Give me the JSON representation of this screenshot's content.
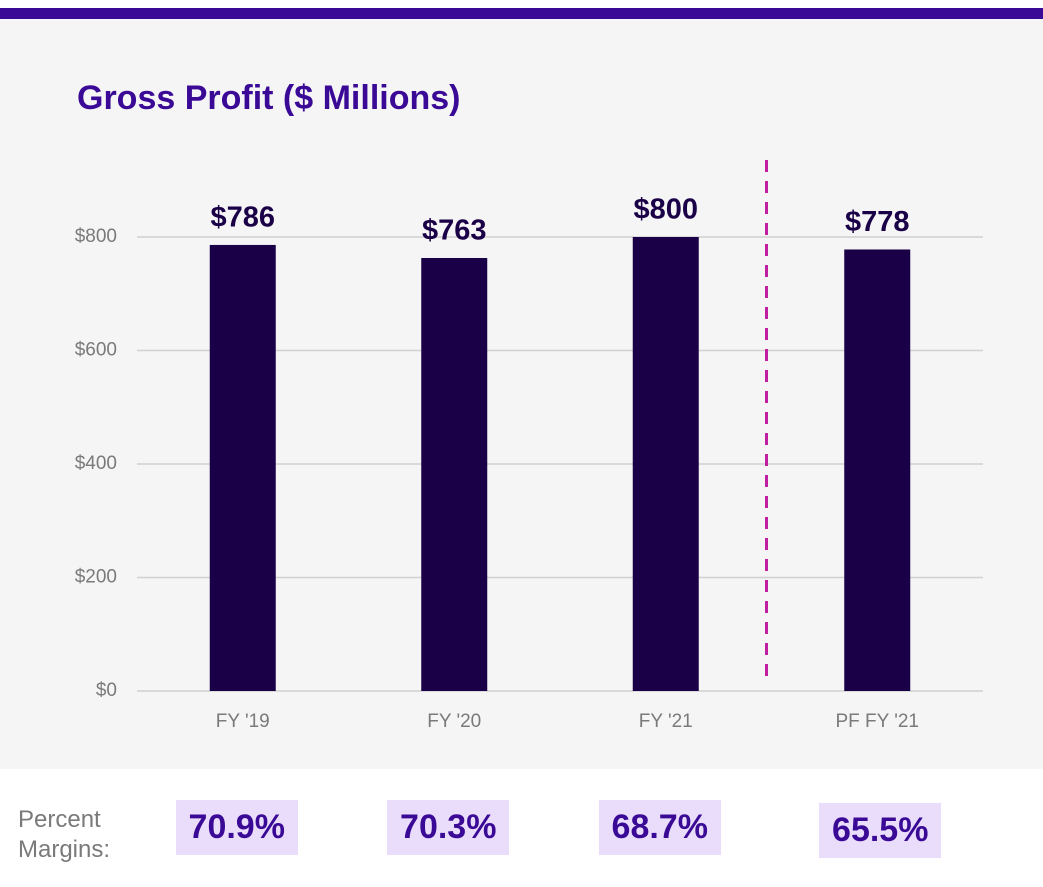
{
  "chart_data": {
    "type": "bar",
    "title": "Gross Profit ($ Millions)",
    "categories": [
      "FY '19",
      "FY '20",
      "FY '21",
      "PF FY '21"
    ],
    "values": [
      786,
      763,
      800,
      778
    ],
    "value_labels": [
      "$786",
      "$763",
      "$800",
      "$778"
    ],
    "color": "#1a0047",
    "ylim": [
      0,
      800
    ],
    "yticks": [
      {
        "value": 0,
        "label": "$0"
      },
      {
        "value": 200,
        "label": "$200"
      },
      {
        "value": 400,
        "label": "$400"
      },
      {
        "value": 600,
        "label": "$600"
      },
      {
        "value": 800,
        "label": "$800"
      }
    ],
    "grid": true
  },
  "margins": {
    "label": "Percent Margins:",
    "values": [
      70.9,
      70.3,
      68.7,
      65.5
    ],
    "value_labels": [
      "70.9%",
      "70.3%",
      "68.7%",
      "65.5%"
    ]
  }
}
